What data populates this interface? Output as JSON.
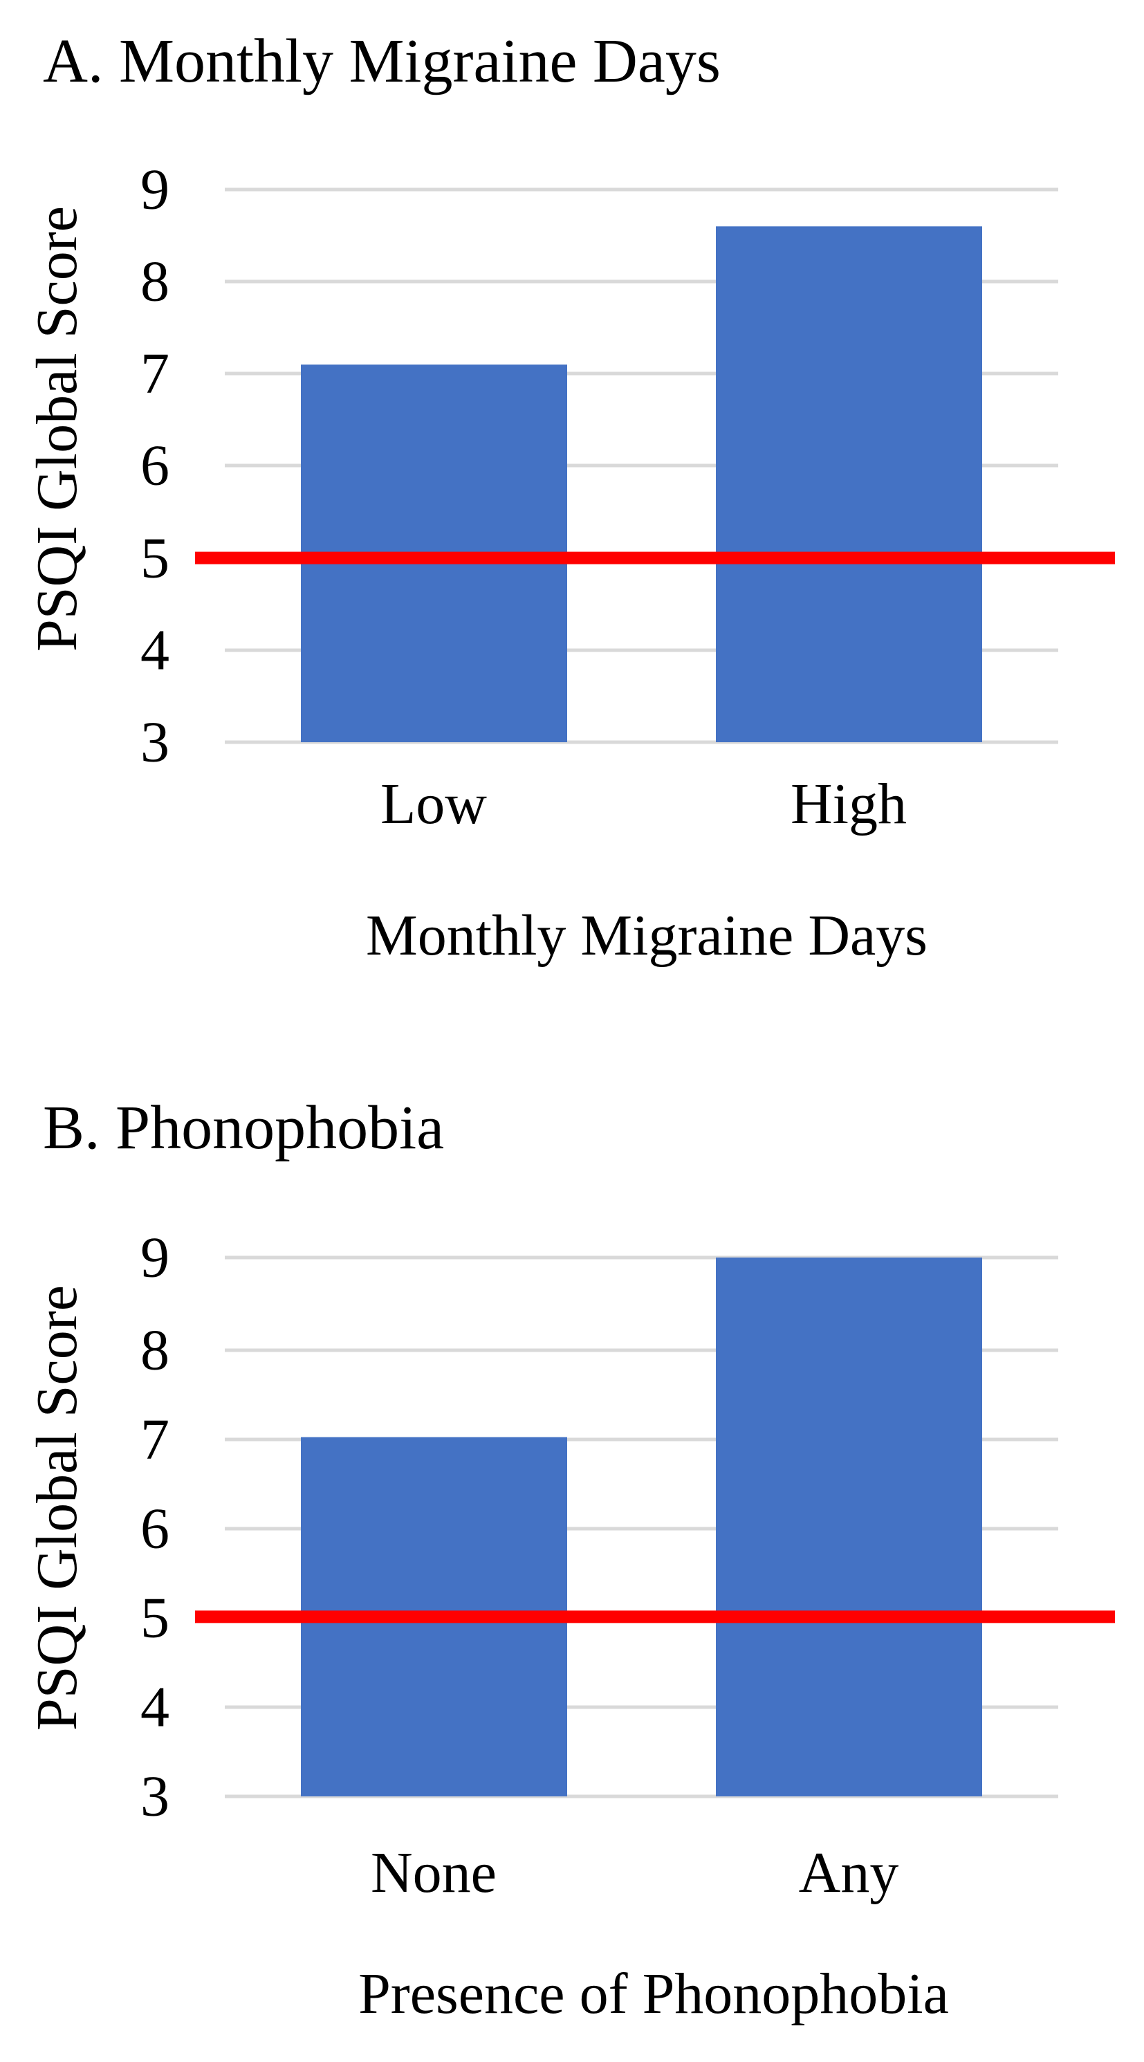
{
  "colors": {
    "bar": "#4472C4",
    "threshold": "#FF0000",
    "grid": "#D9D9D9"
  },
  "chart_data": [
    {
      "type": "bar",
      "title": "A. Monthly Migraine Days",
      "xlabel": "Monthly Migraine Days",
      "ylabel": "PSQI Global Score",
      "categories": [
        "Low",
        "High"
      ],
      "values": [
        7.1,
        8.6
      ],
      "ylim": [
        3,
        9
      ],
      "yticks": [
        "3",
        "4",
        "5",
        "6",
        "7",
        "8",
        "9"
      ],
      "grid": true,
      "reference_line": 5
    },
    {
      "type": "bar",
      "title": "B. Phonophobia",
      "xlabel": "Presence of Phonophobia",
      "ylabel": "PSQI Global Score",
      "categories": [
        "None",
        "Any"
      ],
      "values": [
        7.0,
        9.0
      ],
      "ylim": [
        3,
        9
      ],
      "yticks": [
        "3",
        "4",
        "5",
        "6",
        "7",
        "8",
        "9"
      ],
      "grid": true,
      "reference_line": 5
    }
  ]
}
